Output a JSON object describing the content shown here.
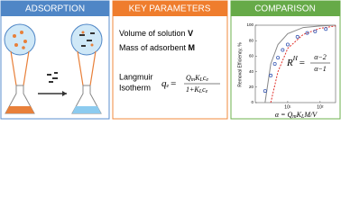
{
  "panels": [
    {
      "title": "ADSORPTION"
    },
    {
      "title": "KEY PARAMETERS"
    },
    {
      "title": "COMPARISON"
    }
  ],
  "params": [
    {
      "text": "Volume of solution ",
      "symbol": "V"
    },
    {
      "text": "Mass of adsorbent ",
      "symbol": "M"
    }
  ],
  "isotherm": {
    "label": [
      "Langmuir",
      "Isotherm"
    ],
    "lhs": [
      "q",
      "e"
    ],
    "eq": "=",
    "num": [
      "Q",
      "m",
      "K",
      "L",
      "c",
      "e"
    ],
    "den": [
      "1+K",
      "L",
      "c",
      "e"
    ]
  },
  "chart": {
    "type": "scatter",
    "ylabel": "Removal Efficiency, %",
    "ylim": [
      0,
      100
    ],
    "yticks": [
      0,
      20,
      40,
      60,
      80,
      100
    ],
    "xlim": [
      1,
      300
    ],
    "log_x": true,
    "xticks": [
      {
        "value": 10,
        "label": "10¹"
      },
      {
        "value": 100,
        "label": "10²"
      }
    ],
    "series": [
      {
        "color": "#3b5bb5",
        "x": [
          2,
          3,
          4,
          5,
          7,
          10,
          20,
          40,
          70,
          150
        ],
        "values": [
          15,
          35,
          50,
          58,
          68,
          75,
          85,
          90,
          92,
          95
        ]
      }
    ],
    "curves": [
      {
        "color": "#888888",
        "x": [
          2,
          3,
          5,
          10,
          30,
          100,
          300
        ],
        "values": [
          0,
          50,
          75,
          89,
          97,
          99,
          100
        ]
      },
      {
        "color": "#e0302a",
        "x": [
          3,
          5,
          10,
          30,
          100,
          300
        ],
        "values": [
          0,
          40,
          70,
          88,
          96,
          99
        ]
      }
    ],
    "formula": {
      "lhs": "R",
      "sup": "H",
      "eq": "=",
      "num": "α−2",
      "den": "α−1"
    },
    "xlabel": [
      "α = Q",
      "m",
      "K",
      "L",
      "M/V"
    ]
  }
}
